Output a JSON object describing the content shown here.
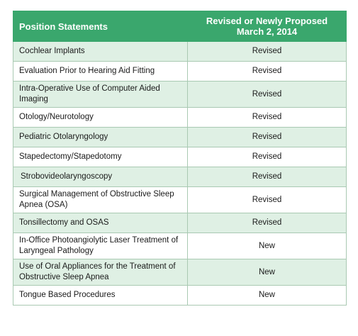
{
  "table": {
    "headers": {
      "statement": "Position Statements",
      "status_line1": "Revised or Newly Proposed",
      "status_line2": "March 2, 2014"
    },
    "rows": [
      {
        "statement": "Cochlear Implants",
        "status": "Revised"
      },
      {
        "statement": "Evaluation Prior to Hearing Aid Fitting",
        "status": "Revised"
      },
      {
        "statement": "Intra-Operative Use of Computer Aided Imaging",
        "status": "Revised"
      },
      {
        "statement": "Otology/Neurotology",
        "status": "Revised"
      },
      {
        "statement": "Pediatric Otolaryngology",
        "status": "Revised"
      },
      {
        "statement": "Stapedectomy/Stapedotomy",
        "status": "Revised"
      },
      {
        "statement": "Strobovideolaryngoscopy",
        "status": "Revised"
      },
      {
        "statement": "Surgical Management of Obstructive Sleep Apnea (OSA)",
        "status": "Revised"
      },
      {
        "statement": "Tonsillectomy and OSAS",
        "status": "Revised"
      },
      {
        "statement": "In-Office Photoangiolytic Laser Treatment of Laryngeal Pathology",
        "status": "New"
      },
      {
        "statement": "Use of Oral Appliances for the Treatment of Obstructive Sleep Apnea",
        "status": "New"
      },
      {
        "statement": "Tongue Based Procedures",
        "status": "New"
      }
    ]
  },
  "colors": {
    "header_bg": "#3aa76d",
    "band_bg": "#dff0e4",
    "border": "#a9c9b2"
  }
}
